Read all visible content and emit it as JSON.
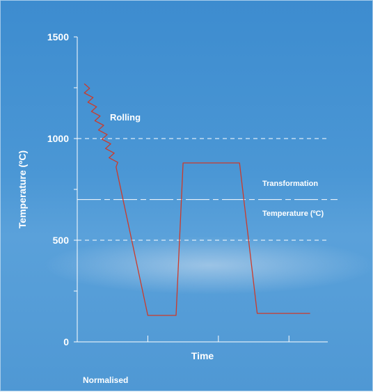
{
  "chart_data": {
    "type": "line",
    "xlabel": "Time",
    "ylabel": "Temperature (ºC)",
    "ylim": [
      0,
      1500
    ],
    "y_ticks": [
      0,
      500,
      1000,
      1500
    ],
    "caption": "Normalised",
    "reference_lines": [
      {
        "y": 1000,
        "style": "dashed"
      },
      {
        "y": 500,
        "style": "dashed"
      },
      {
        "y": 700,
        "style": "dash-dot",
        "labels": [
          "Transformation",
          "Temperature (ºC)"
        ]
      }
    ],
    "annotations": [
      {
        "text": "Rolling",
        "x": 0.5,
        "y": 1100
      }
    ],
    "series": [
      {
        "color": "#cc3a2a",
        "x": [
          0.1,
          0.55,
          1.0,
          1.4,
          1.5,
          2.3,
          2.55,
          3.3
        ],
        "y": [
          1270,
          860,
          130,
          130,
          880,
          880,
          140,
          140
        ]
      }
    ],
    "line_color": "#cc3a2a",
    "zigzag": {
      "x_start": 0.1,
      "x_end": 0.55
    }
  }
}
